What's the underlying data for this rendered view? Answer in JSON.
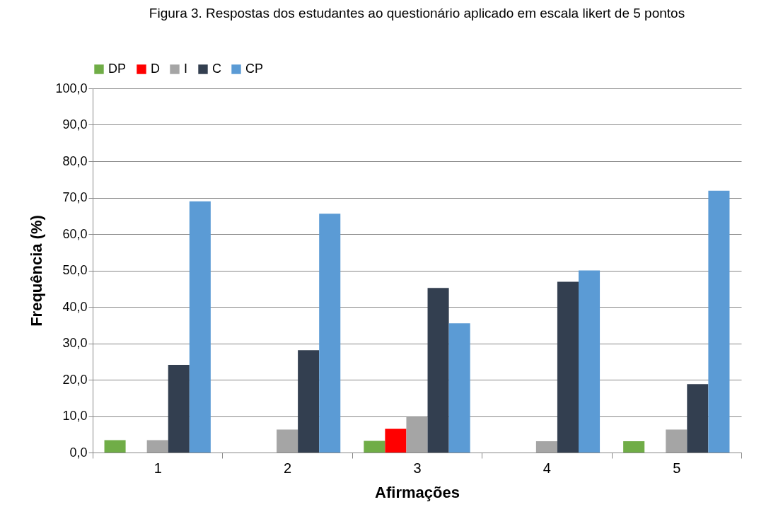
{
  "chart_data": {
    "type": "bar",
    "title": "Figura 3. Respostas dos estudantes ao questionário aplicado em escala likert de 5 pontos",
    "xlabel": "Afirmações",
    "ylabel": "Frequência (%)",
    "categories": [
      "1",
      "2",
      "3",
      "4",
      "5"
    ],
    "series": [
      {
        "name": "DP",
        "color": "#70ad47",
        "values": [
          3.4,
          0,
          3.2,
          0,
          3.1
        ]
      },
      {
        "name": "D",
        "color": "#ff0000",
        "values": [
          0,
          0,
          6.5,
          0,
          0
        ]
      },
      {
        "name": "I",
        "color": "#a5a5a5",
        "values": [
          3.4,
          6.3,
          9.7,
          3.1,
          6.3
        ]
      },
      {
        "name": "C",
        "color": "#333f50",
        "values": [
          24.1,
          28.1,
          45.2,
          46.9,
          18.8
        ]
      },
      {
        "name": "CP",
        "color": "#5b9bd5",
        "values": [
          69.0,
          65.6,
          35.5,
          50.0,
          71.9
        ]
      }
    ],
    "ylim": [
      0,
      100
    ],
    "yticks": [
      {
        "value": 0,
        "label": "0,0"
      },
      {
        "value": 10,
        "label": "10,0"
      },
      {
        "value": 20,
        "label": "20,0"
      },
      {
        "value": 30,
        "label": "30,0"
      },
      {
        "value": 40,
        "label": "40,0"
      },
      {
        "value": 50,
        "label": "50,0"
      },
      {
        "value": 60,
        "label": "60,0"
      },
      {
        "value": 70,
        "label": "70,0"
      },
      {
        "value": 80,
        "label": "80,0"
      },
      {
        "value": 90,
        "label": "90,0"
      },
      {
        "value": 100,
        "label": "100,0"
      }
    ],
    "grid": "y",
    "legend": "top"
  }
}
